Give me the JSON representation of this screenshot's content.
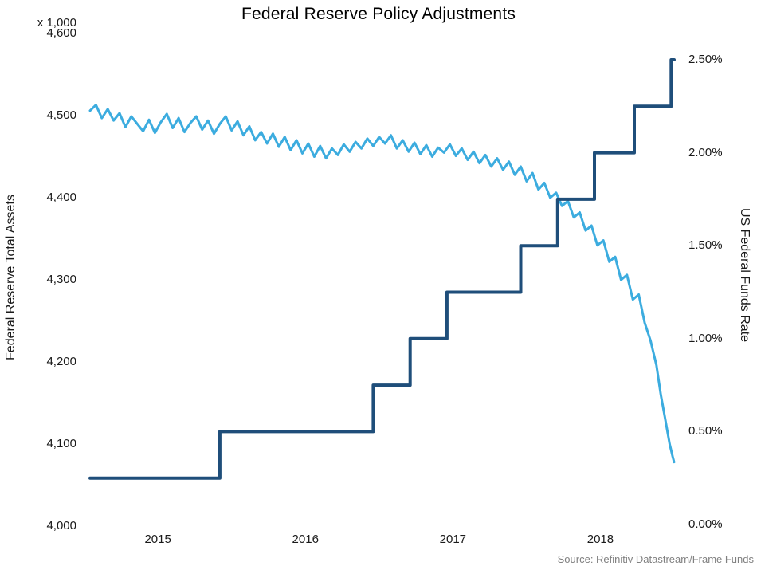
{
  "chart_data": {
    "type": "line",
    "title": "Federal Reserve Policy Adjustments",
    "source": "Source: Refinitiv Datastream/Frame Funds",
    "grid": "off",
    "legend": "none",
    "x_axis": {
      "range": [
        2015.04,
        2019.0
      ],
      "ticks": [
        {
          "value": 2015.5,
          "label": "2015"
        },
        {
          "value": 2016.5,
          "label": "2016"
        },
        {
          "value": 2017.5,
          "label": "2017"
        },
        {
          "value": 2018.5,
          "label": "2018"
        }
      ]
    },
    "left_axis": {
      "title": "Federal Reserve Total Assets",
      "multiplier": "x 1,000",
      "range": [
        4000,
        4600
      ],
      "ticks": [
        {
          "value": 4000,
          "label": "4,000"
        },
        {
          "value": 4100,
          "label": "4,100"
        },
        {
          "value": 4200,
          "label": "4,200"
        },
        {
          "value": 4300,
          "label": "4,300"
        },
        {
          "value": 4400,
          "label": "4,400"
        },
        {
          "value": 4500,
          "label": "4,500"
        },
        {
          "value": 4600,
          "label": "4,600"
        }
      ]
    },
    "right_axis": {
      "title": "US Federal Funds Rate",
      "range": [
        0,
        2.5
      ],
      "ticks": [
        {
          "value": 0.0,
          "label": "0.00%"
        },
        {
          "value": 0.5,
          "label": "0.50%"
        },
        {
          "value": 1.0,
          "label": "1.00%"
        },
        {
          "value": 1.5,
          "label": "1.50%"
        },
        {
          "value": 2.0,
          "label": "2.00%"
        },
        {
          "value": 2.5,
          "label": "2.50%"
        }
      ]
    },
    "series": [
      {
        "name": "Federal Reserve Total Assets",
        "axis": "left",
        "color": "#3CACDF",
        "width": 3,
        "style": "line",
        "points": [
          [
            2015.04,
            4506
          ],
          [
            2015.08,
            4513
          ],
          [
            2015.12,
            4497
          ],
          [
            2015.16,
            4508
          ],
          [
            2015.2,
            4494
          ],
          [
            2015.24,
            4503
          ],
          [
            2015.28,
            4486
          ],
          [
            2015.32,
            4499
          ],
          [
            2015.36,
            4490
          ],
          [
            2015.4,
            4481
          ],
          [
            2015.44,
            4495
          ],
          [
            2015.48,
            4479
          ],
          [
            2015.52,
            4492
          ],
          [
            2015.56,
            4502
          ],
          [
            2015.6,
            4485
          ],
          [
            2015.64,
            4497
          ],
          [
            2015.68,
            4480
          ],
          [
            2015.72,
            4491
          ],
          [
            2015.76,
            4499
          ],
          [
            2015.8,
            4483
          ],
          [
            2015.84,
            4494
          ],
          [
            2015.88,
            4478
          ],
          [
            2015.92,
            4490
          ],
          [
            2015.96,
            4499
          ],
          [
            2016.0,
            4482
          ],
          [
            2016.04,
            4493
          ],
          [
            2016.08,
            4476
          ],
          [
            2016.12,
            4487
          ],
          [
            2016.16,
            4470
          ],
          [
            2016.2,
            4480
          ],
          [
            2016.24,
            4466
          ],
          [
            2016.28,
            4478
          ],
          [
            2016.32,
            4462
          ],
          [
            2016.36,
            4474
          ],
          [
            2016.4,
            4458
          ],
          [
            2016.44,
            4470
          ],
          [
            2016.48,
            4454
          ],
          [
            2016.52,
            4466
          ],
          [
            2016.56,
            4450
          ],
          [
            2016.6,
            4463
          ],
          [
            2016.64,
            4448
          ],
          [
            2016.68,
            4460
          ],
          [
            2016.72,
            4452
          ],
          [
            2016.76,
            4465
          ],
          [
            2016.8,
            4456
          ],
          [
            2016.84,
            4468
          ],
          [
            2016.88,
            4460
          ],
          [
            2016.92,
            4472
          ],
          [
            2016.96,
            4463
          ],
          [
            2017.0,
            4474
          ],
          [
            2017.04,
            4466
          ],
          [
            2017.08,
            4476
          ],
          [
            2017.12,
            4460
          ],
          [
            2017.16,
            4470
          ],
          [
            2017.2,
            4456
          ],
          [
            2017.24,
            4467
          ],
          [
            2017.28,
            4453
          ],
          [
            2017.32,
            4464
          ],
          [
            2017.36,
            4450
          ],
          [
            2017.4,
            4461
          ],
          [
            2017.44,
            4455
          ],
          [
            2017.48,
            4465
          ],
          [
            2017.52,
            4451
          ],
          [
            2017.56,
            4460
          ],
          [
            2017.6,
            4446
          ],
          [
            2017.64,
            4456
          ],
          [
            2017.68,
            4442
          ],
          [
            2017.72,
            4452
          ],
          [
            2017.76,
            4438
          ],
          [
            2017.8,
            4448
          ],
          [
            2017.84,
            4434
          ],
          [
            2017.88,
            4444
          ],
          [
            2017.92,
            4428
          ],
          [
            2017.96,
            4438
          ],
          [
            2018.0,
            4420
          ],
          [
            2018.04,
            4430
          ],
          [
            2018.08,
            4410
          ],
          [
            2018.12,
            4418
          ],
          [
            2018.16,
            4400
          ],
          [
            2018.2,
            4406
          ],
          [
            2018.24,
            4390
          ],
          [
            2018.28,
            4396
          ],
          [
            2018.32,
            4376
          ],
          [
            2018.36,
            4382
          ],
          [
            2018.4,
            4360
          ],
          [
            2018.44,
            4366
          ],
          [
            2018.48,
            4342
          ],
          [
            2018.52,
            4348
          ],
          [
            2018.56,
            4322
          ],
          [
            2018.6,
            4328
          ],
          [
            2018.64,
            4300
          ],
          [
            2018.68,
            4306
          ],
          [
            2018.72,
            4276
          ],
          [
            2018.76,
            4282
          ],
          [
            2018.8,
            4248
          ],
          [
            2018.84,
            4226
          ],
          [
            2018.88,
            4196
          ],
          [
            2018.91,
            4160
          ],
          [
            2018.94,
            4130
          ],
          [
            2018.97,
            4100
          ],
          [
            2018.99,
            4085
          ],
          [
            2019.0,
            4078
          ]
        ]
      },
      {
        "name": "US Federal Funds Rate",
        "axis": "right",
        "color": "#1F4E7A",
        "width": 4,
        "style": "step",
        "end_x": 2019.0,
        "points": [
          [
            2015.04,
            0.25
          ],
          [
            2015.92,
            0.5
          ],
          [
            2016.96,
            0.75
          ],
          [
            2017.21,
            1.0
          ],
          [
            2017.46,
            1.25
          ],
          [
            2017.96,
            1.5
          ],
          [
            2018.21,
            1.75
          ],
          [
            2018.46,
            2.0
          ],
          [
            2018.73,
            2.25
          ],
          [
            2018.98,
            2.5
          ]
        ]
      }
    ]
  }
}
